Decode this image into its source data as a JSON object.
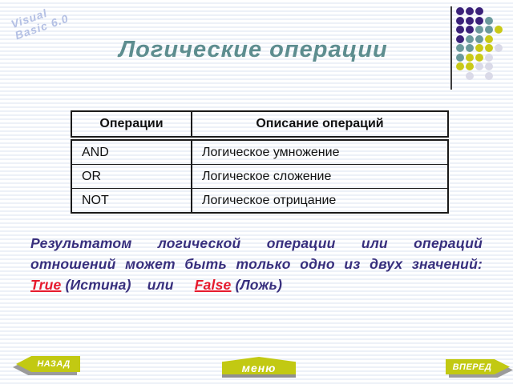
{
  "branding": {
    "line1": "Visual",
    "line2": "Basic 6.0"
  },
  "title": "Логические операции",
  "table": {
    "headers": [
      "Операции",
      "Описание операций"
    ],
    "rows": [
      {
        "operation": "AND",
        "description": "Логическое умножение"
      },
      {
        "operation": "OR",
        "description": "Логическое сложение"
      },
      {
        "operation": "NOT",
        "description": "Логическое отрицание"
      }
    ]
  },
  "paragraph": {
    "line1": "Результатом логической операции или операций",
    "line2": "отношений может быть только одно из двух значений:",
    "true_label": "True",
    "true_note": "(Истина)",
    "conjunction": "или",
    "false_label": "False",
    "false_note": "(Ложь)"
  },
  "nav": {
    "back_label": "НАЗАД",
    "menu_label": "меню",
    "forward_label": "ВПЕРЕД"
  },
  "colors": {
    "title_teal": "#5d8d8f",
    "paragraph_purple": "#382f7d",
    "keyword_red": "#e61a2d",
    "button_yellow": "#c2c912",
    "button_shadow_gray": "#9b9b9b",
    "brand_lavender": "#b4c0e4",
    "dot_purple": "#3a2179",
    "dot_teal": "#6a999b",
    "dot_yellow": "#c9c917",
    "dot_lavender": "#dadae8"
  },
  "decoration": {
    "dots_grid": [
      [
        "P",
        "P",
        "P",
        "",
        ""
      ],
      [
        "P",
        "P",
        "P",
        "T",
        ""
      ],
      [
        "P",
        "P",
        "T",
        "T",
        "Y"
      ],
      [
        "P",
        "T",
        "T",
        "Y",
        ""
      ],
      [
        "T",
        "T",
        "Y",
        "Y",
        "L"
      ],
      [
        "T",
        "Y",
        "Y",
        "L",
        ""
      ],
      [
        "Y",
        "Y",
        "L",
        "L",
        ""
      ],
      [
        "",
        "L",
        "",
        "L",
        ""
      ]
    ]
  }
}
